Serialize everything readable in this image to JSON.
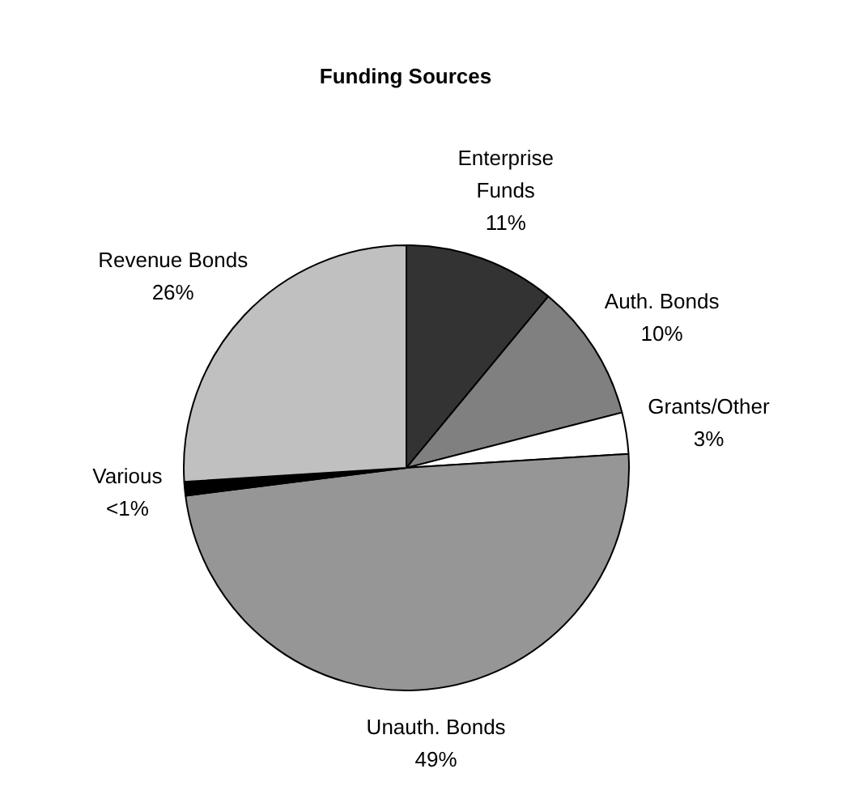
{
  "chart_data": {
    "type": "pie",
    "title": "Funding Sources",
    "categories": [
      "Enterprise Funds",
      "Auth. Bonds",
      "Grants/Other",
      "Unauth. Bonds",
      "Various",
      "Revenue Bonds"
    ],
    "values": [
      11,
      10,
      3,
      49,
      1,
      26
    ],
    "colors": [
      "#333333",
      "#808080",
      "#ffffff",
      "#969696",
      "#000000",
      "#c0c0c0"
    ],
    "value_labels": [
      "11%",
      "10%",
      "3%",
      "49%",
      "<1%",
      "26%"
    ]
  }
}
